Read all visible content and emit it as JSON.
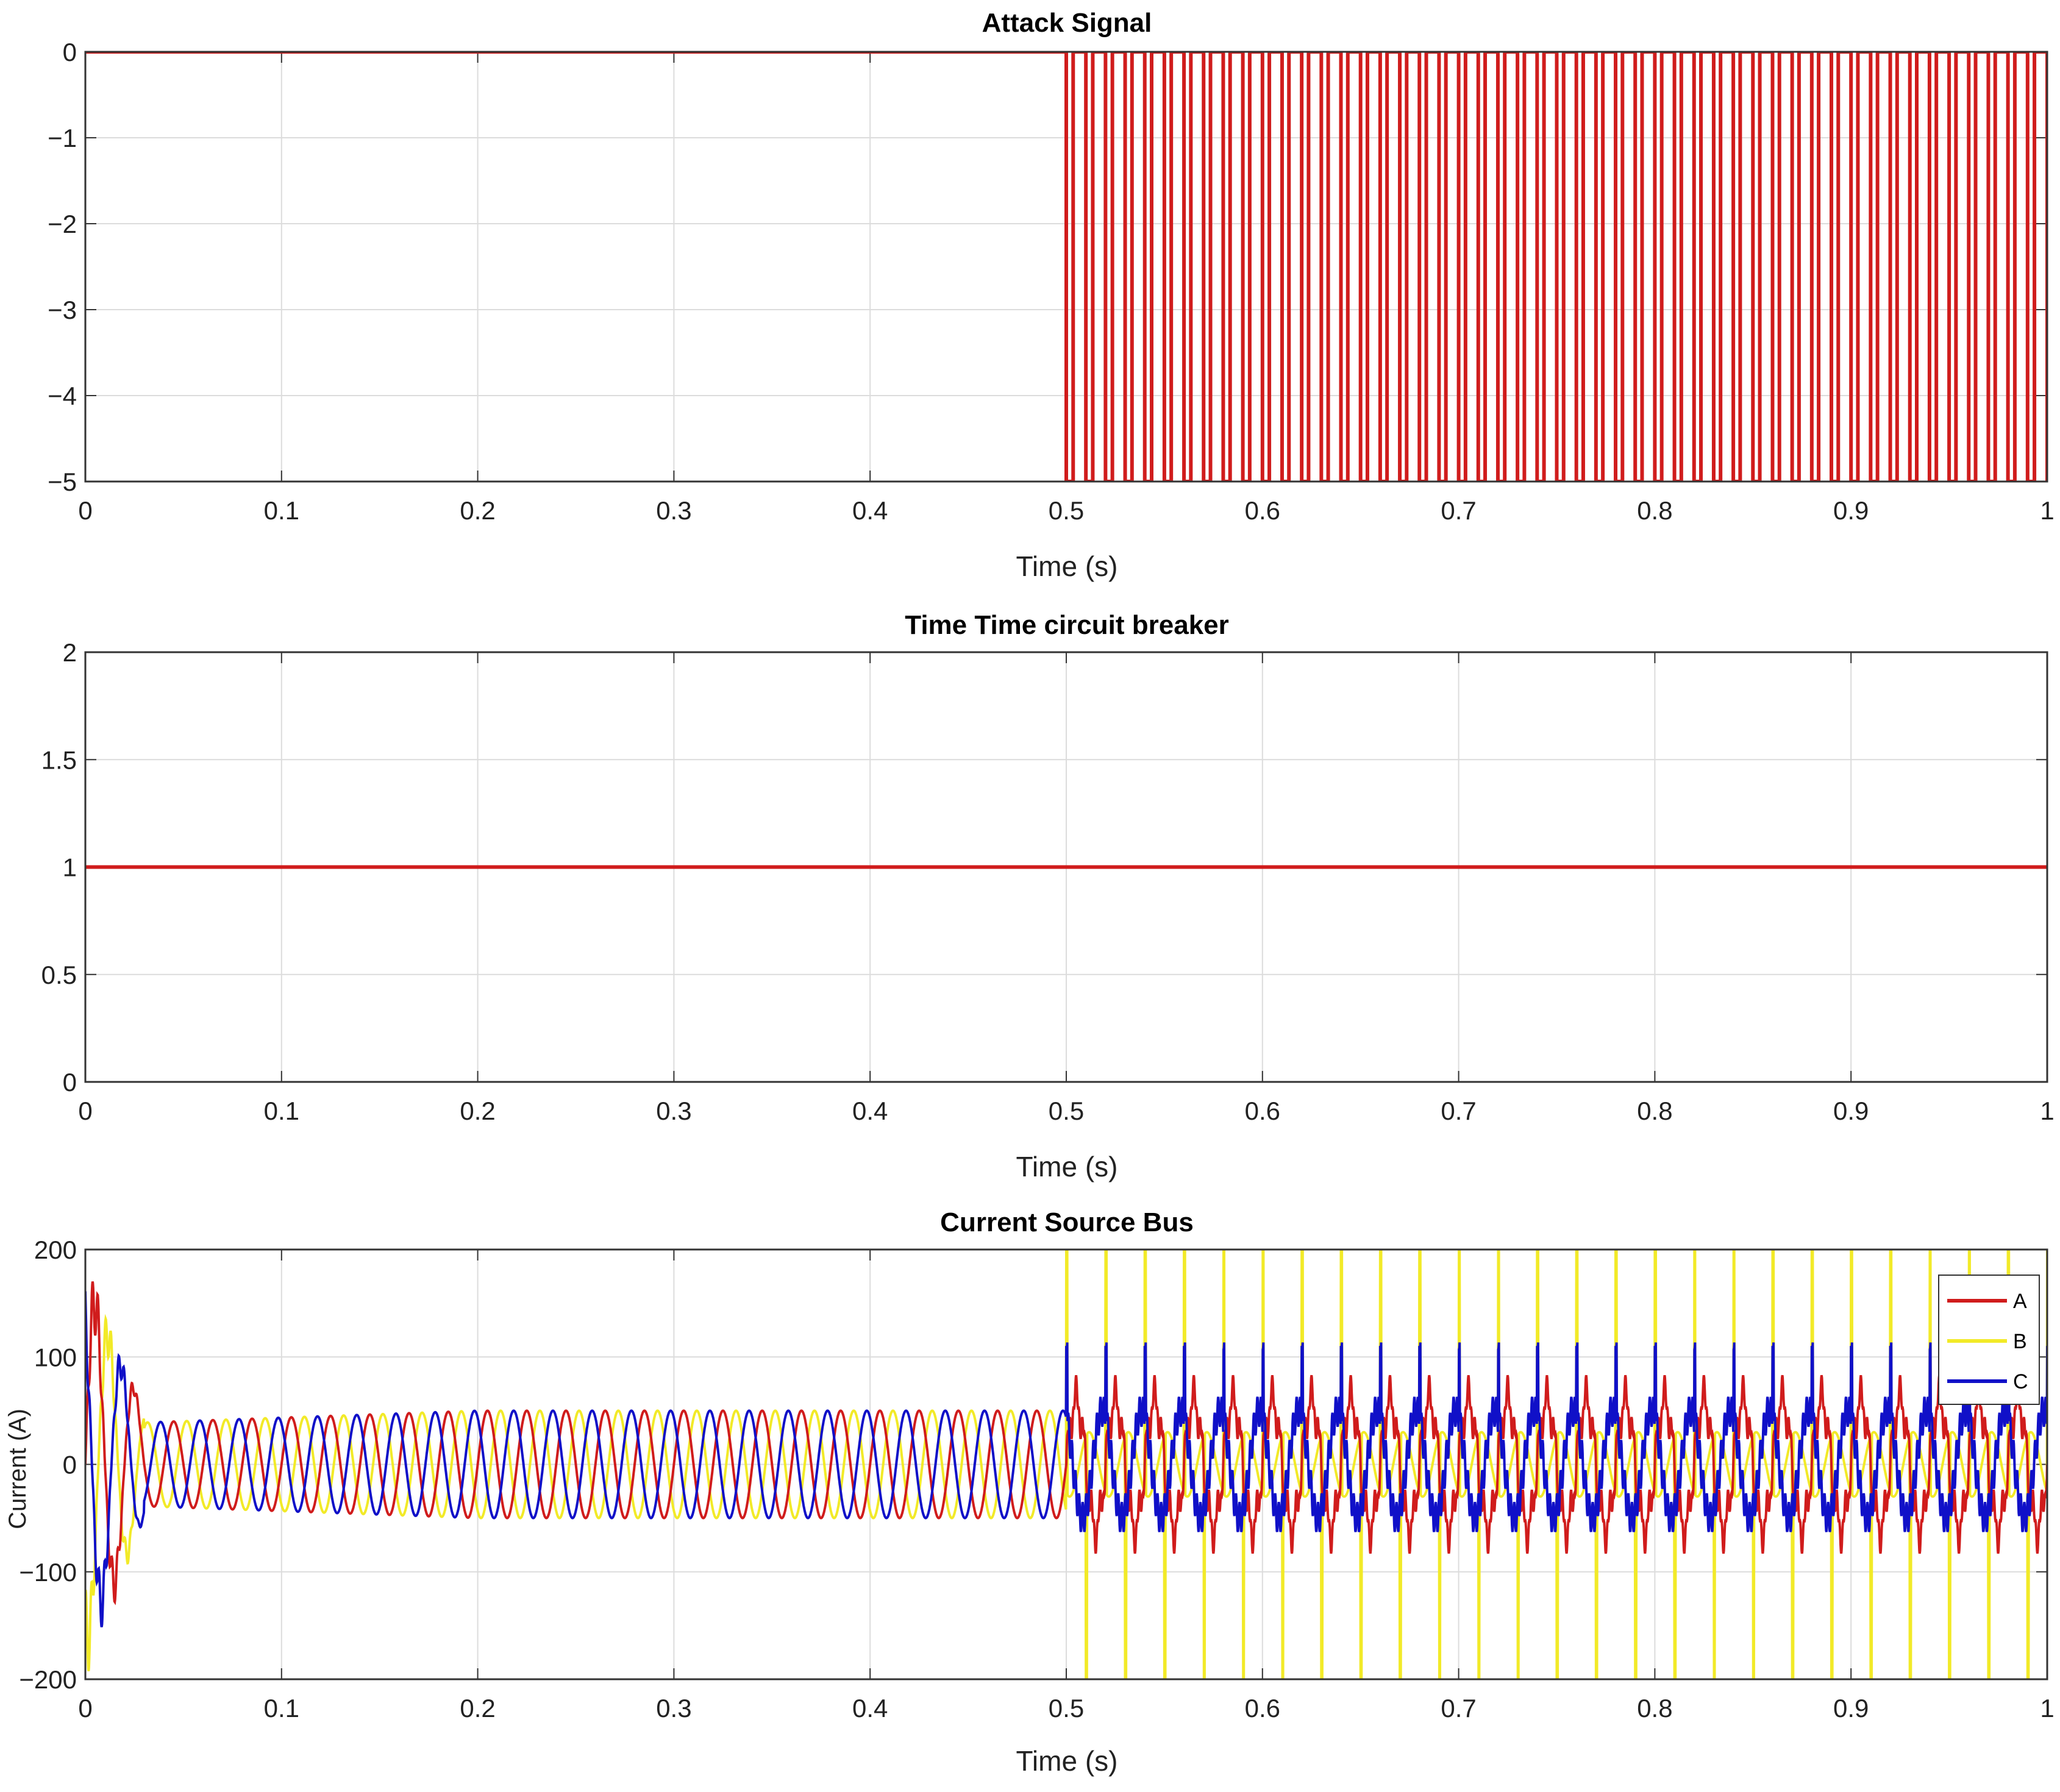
{
  "chart_data": [
    {
      "type": "line",
      "title": "Attack Signal",
      "xlabel": "Time (s)",
      "ylabel": "",
      "xlim": [
        0,
        1
      ],
      "ylim": [
        -5,
        0
      ],
      "xticks": [
        "0",
        "0.1",
        "0.2",
        "0.3",
        "0.4",
        "0.5",
        "0.6",
        "0.7",
        "0.8",
        "0.9",
        "1"
      ],
      "yticks": [
        "0",
        "−1",
        "−2",
        "−3",
        "−4",
        "−5"
      ],
      "grid": true,
      "series": [
        {
          "color": "#d01c1c",
          "description_values": {
            "baseline": 0,
            "pulse_low": -5,
            "pulse_start": 0.5,
            "pulse_period": 0.01,
            "pulse_width": 0.0035
          }
        }
      ]
    },
    {
      "type": "line",
      "title": "Time Time circuit breaker",
      "xlabel": "Time (s)",
      "ylabel": "",
      "xlim": [
        0,
        1
      ],
      "ylim": [
        0,
        2
      ],
      "xticks": [
        "0",
        "0.1",
        "0.2",
        "0.3",
        "0.4",
        "0.5",
        "0.6",
        "0.7",
        "0.8",
        "0.9",
        "1"
      ],
      "yticks": [
        "2",
        "1.5",
        "1",
        "0.5",
        "0"
      ],
      "grid": true,
      "series": [
        {
          "color": "#d01c1c",
          "x": [
            0,
            1
          ],
          "y": [
            1,
            1
          ]
        }
      ]
    },
    {
      "type": "line",
      "title": "Current Source Bus",
      "xlabel": "Time (s)",
      "ylabel": "Current (A)",
      "xlim": [
        0,
        1
      ],
      "ylim": [
        -200,
        200
      ],
      "xticks": [
        "0",
        "0.1",
        "0.2",
        "0.3",
        "0.4",
        "0.5",
        "0.6",
        "0.7",
        "0.8",
        "0.9",
        "1"
      ],
      "yticks": [
        "200",
        "100",
        "0",
        "−100",
        "−200"
      ],
      "grid": true,
      "legend_position": "top-right",
      "frequency_hz": 50,
      "steady_amplitude_before_attack": 50,
      "attack_start": 0.5,
      "series": [
        {
          "name": "A",
          "color": "#d01c1c",
          "phase_deg": 0,
          "peak_before": 150,
          "amplitude_after": 80
        },
        {
          "name": "B",
          "color": "#f2ea28",
          "phase_deg": -120,
          "peak_before": -145,
          "amplitude_after": 200
        },
        {
          "name": "C",
          "color": "#1010c8",
          "phase_deg": 120,
          "peak_before": -135,
          "amplitude_after": 130
        }
      ]
    }
  ]
}
